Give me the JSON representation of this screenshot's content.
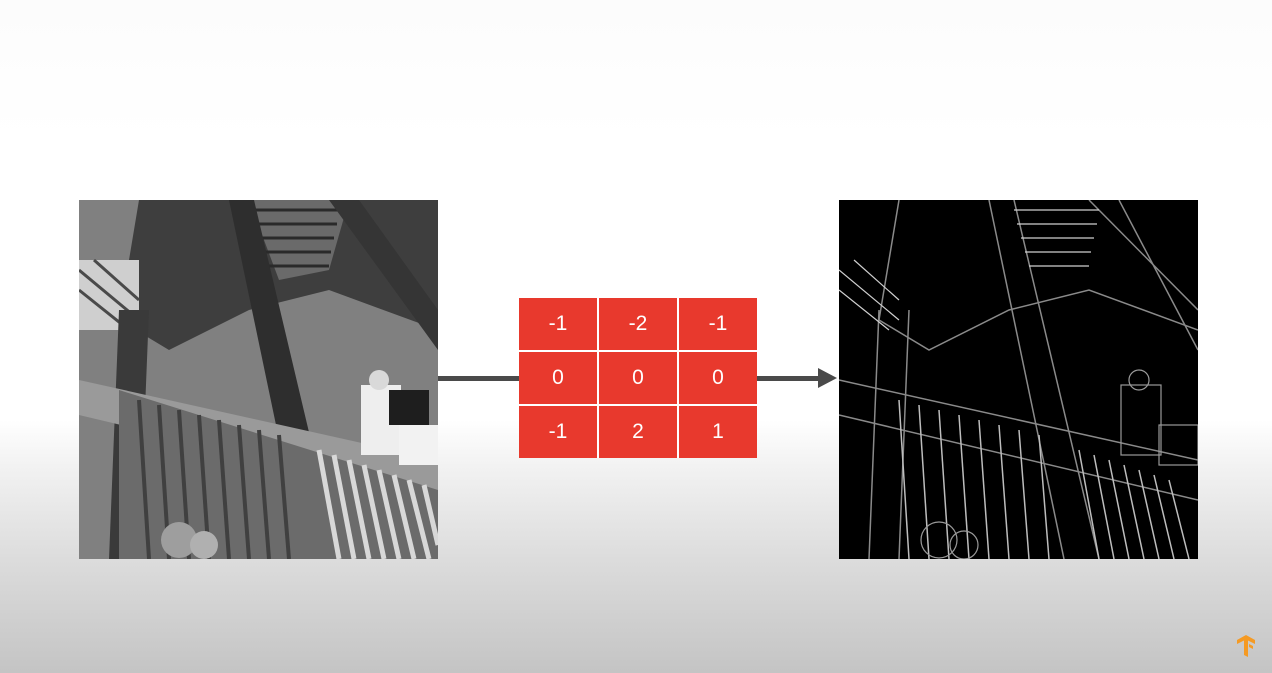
{
  "colors": {
    "kernel_cell": "#e8392d",
    "kernel_text": "#ffffff",
    "arrow": "#4a4a4a",
    "logo": "#f59a23"
  },
  "input_image": {
    "description_icon": "grayscale-staircase-photo"
  },
  "output_image": {
    "description_icon": "edge-detected-staircase-photo"
  },
  "kernel": {
    "rows": [
      [
        "-1",
        "-2",
        "-1"
      ],
      [
        "0",
        "0",
        "0"
      ],
      [
        "-1",
        "2",
        "1"
      ]
    ]
  },
  "logo": {
    "icon": "tensorflow-logo-icon"
  }
}
